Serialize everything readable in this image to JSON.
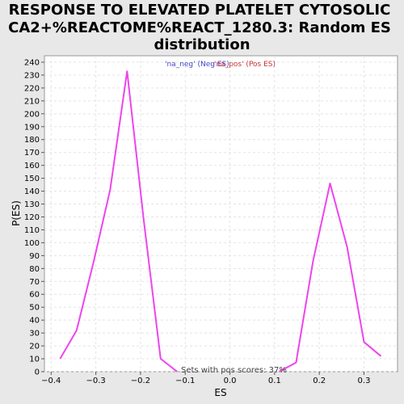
{
  "chart_data": {
    "type": "line",
    "title_lines": [
      "RESPONSE TO ELEVATED PLATELET CYTOSOLIC",
      "CA2+%REACTOME%REACT_1280.3: Random ES",
      "distribution"
    ],
    "xlabel": "ES",
    "ylabel": "P(ES)",
    "xlim": [
      -0.415,
      0.375
    ],
    "ylim": [
      0,
      245
    ],
    "xticks": [
      -0.4,
      -0.3,
      -0.2,
      -0.1,
      0.0,
      0.1,
      0.2,
      0.3
    ],
    "xtick_labels": [
      "−0.4",
      "−0.3",
      "−0.2",
      "−0.1",
      "0.0",
      "0.1",
      "0.2",
      "0.3"
    ],
    "yticks": [
      0,
      10,
      20,
      30,
      40,
      50,
      60,
      70,
      80,
      90,
      100,
      110,
      120,
      130,
      140,
      150,
      160,
      170,
      180,
      190,
      200,
      210,
      220,
      230,
      240
    ],
    "grid": true,
    "legend": [
      {
        "label": "'na_neg' (Neg ES)",
        "color": "#4444cc"
      },
      {
        "label": "'na_pos' (Pos ES)",
        "color": "#cc3333"
      }
    ],
    "legend_position": "top-center",
    "series": [
      {
        "color": "#ee44ee",
        "points": [
          [
            -0.38,
            10
          ],
          [
            -0.343,
            32
          ],
          [
            -0.305,
            85
          ],
          [
            -0.268,
            141
          ],
          [
            -0.23,
            233
          ],
          [
            -0.193,
            118
          ],
          [
            -0.155,
            10
          ],
          [
            -0.118,
            0
          ]
        ]
      },
      {
        "color": "#ee44ee",
        "points": [
          [
            0.11,
            0
          ],
          [
            0.148,
            7
          ],
          [
            0.186,
            86
          ],
          [
            0.224,
            146
          ],
          [
            0.262,
            97
          ],
          [
            0.3,
            23
          ],
          [
            0.338,
            12
          ]
        ]
      }
    ],
    "annotation": "Sets with pos scores: 37%"
  }
}
